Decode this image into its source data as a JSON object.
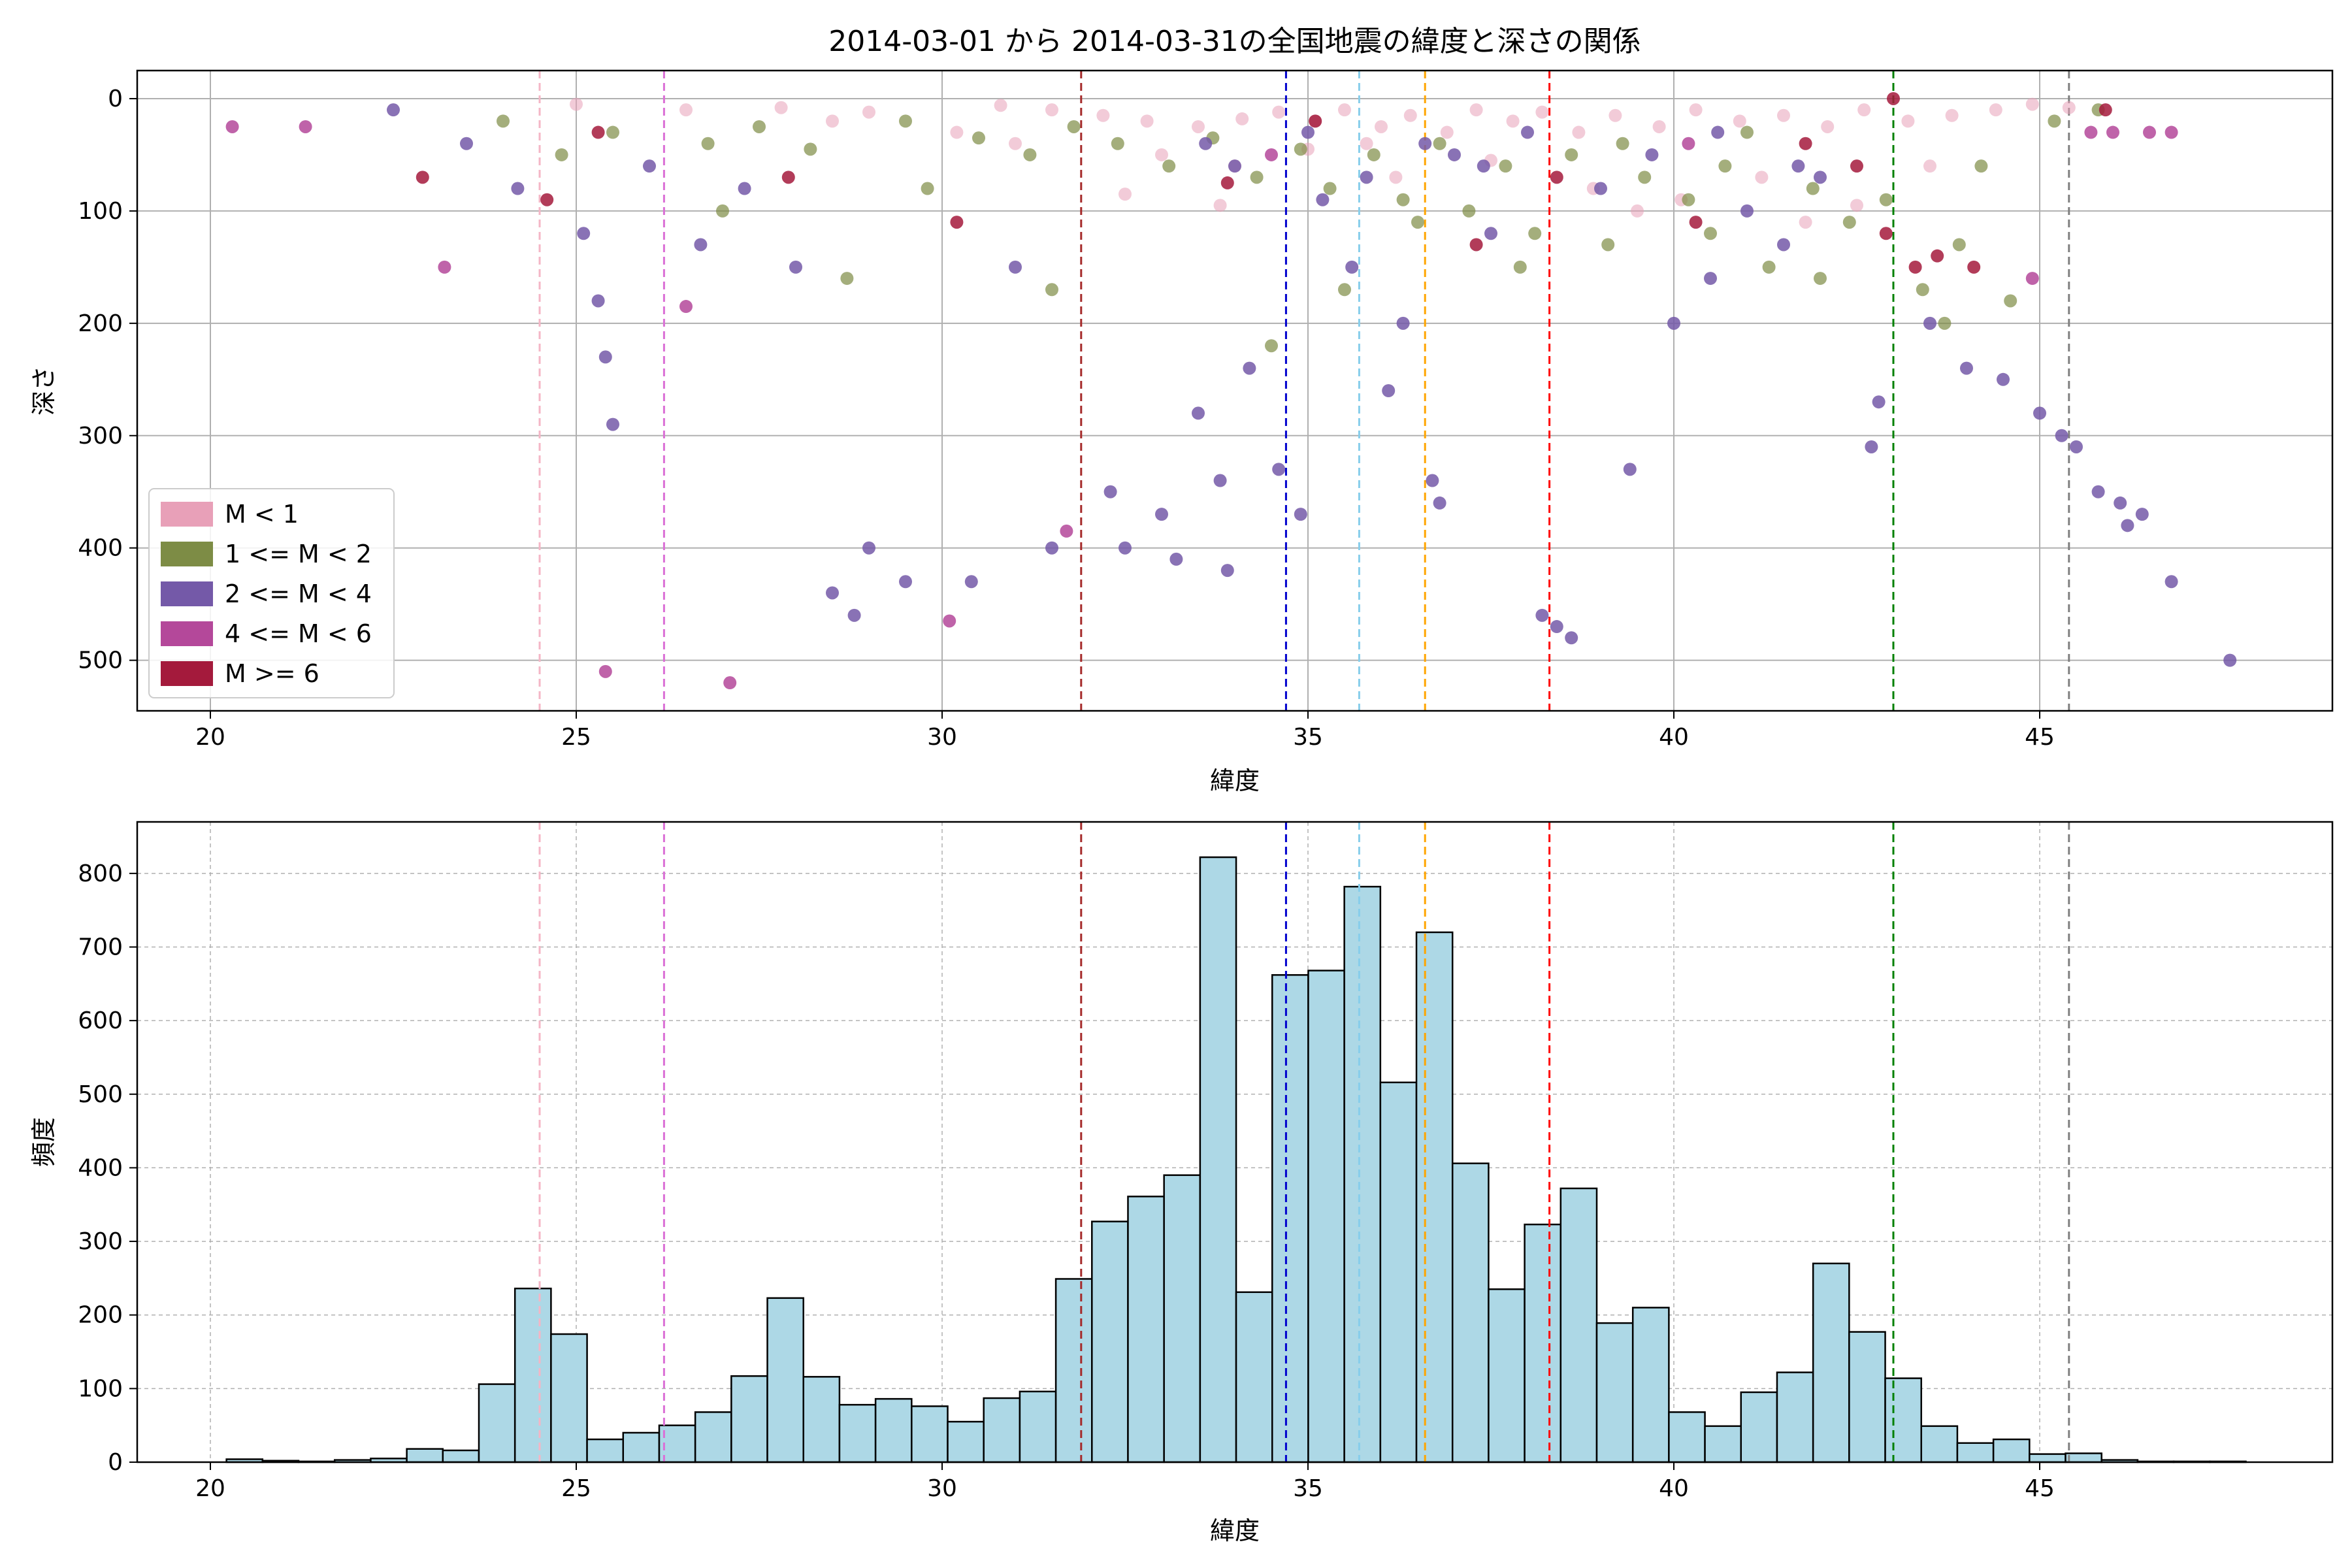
{
  "title": "2014-03-01 から 2014-03-31の全国地震の緯度と深さの関係",
  "colors": {
    "m_lt1": "#e8a0b8",
    "m_1_2": "#7d8c45",
    "m_2_4": "#7459a8",
    "m_4_6": "#b4489a",
    "m_ge6": "#a41a3c",
    "hist_fill": "#add8e6",
    "grid": "#b0b0b0"
  },
  "chart_data": [
    {
      "type": "scatter",
      "xlabel": "緯度",
      "ylabel": "深さ",
      "xlim": [
        19,
        49
      ],
      "ylim": [
        545,
        -25
      ],
      "y_inverted": true,
      "xticks": [
        20,
        25,
        30,
        35,
        40,
        45
      ],
      "yticks": [
        0,
        100,
        200,
        300,
        400,
        500
      ],
      "grid": true,
      "legend_placement": "lower-left",
      "legend": [
        "M < 1",
        "1 <= M < 2",
        "2 <= M < 4",
        "4 <= M < 6",
        "M >= 6"
      ],
      "vlines": [
        {
          "x": 24.5,
          "color": "#f4b6c6"
        },
        {
          "x": 26.2,
          "color": "#da70d6"
        },
        {
          "x": 31.9,
          "color": "#a52a2a"
        },
        {
          "x": 34.7,
          "color": "#0000cd"
        },
        {
          "x": 35.7,
          "color": "#87ceeb"
        },
        {
          "x": 36.6,
          "color": "#ffa500"
        },
        {
          "x": 38.3,
          "color": "#ff0000"
        },
        {
          "x": 43.0,
          "color": "#008000"
        },
        {
          "x": 45.4,
          "color": "#808080"
        }
      ],
      "series": [
        {
          "name": "M < 1",
          "points": [
            [
              25.0,
              5
            ],
            [
              26.5,
              10
            ],
            [
              27.8,
              8
            ],
            [
              29.0,
              12
            ],
            [
              30.8,
              6
            ],
            [
              31.5,
              10
            ],
            [
              32.2,
              15
            ],
            [
              32.8,
              20
            ],
            [
              33.5,
              25
            ],
            [
              34.1,
              18
            ],
            [
              34.6,
              12
            ],
            [
              35.1,
              20
            ],
            [
              35.5,
              10
            ],
            [
              36.0,
              25
            ],
            [
              36.4,
              15
            ],
            [
              36.9,
              30
            ],
            [
              37.3,
              10
            ],
            [
              37.8,
              20
            ],
            [
              38.2,
              12
            ],
            [
              38.7,
              30
            ],
            [
              39.2,
              15
            ],
            [
              39.8,
              25
            ],
            [
              40.3,
              10
            ],
            [
              40.9,
              20
            ],
            [
              41.5,
              15
            ],
            [
              42.1,
              25
            ],
            [
              42.6,
              10
            ],
            [
              43.2,
              20
            ],
            [
              43.8,
              15
            ],
            [
              44.4,
              10
            ],
            [
              44.9,
              5
            ],
            [
              45.4,
              8
            ],
            [
              33.0,
              50
            ],
            [
              34.0,
              60
            ],
            [
              35.0,
              45
            ],
            [
              36.2,
              70
            ],
            [
              37.5,
              55
            ],
            [
              38.9,
              80
            ],
            [
              40.1,
              90
            ],
            [
              41.2,
              70
            ],
            [
              42.5,
              95
            ],
            [
              43.5,
              60
            ],
            [
              32.5,
              85
            ],
            [
              31.0,
              40
            ],
            [
              30.2,
              30
            ],
            [
              28.5,
              20
            ],
            [
              33.8,
              95
            ],
            [
              39.5,
              100
            ],
            [
              41.8,
              110
            ],
            [
              35.8,
              40
            ]
          ]
        },
        {
          "name": "1 <= M < 2",
          "points": [
            [
              24.0,
              20
            ],
            [
              24.8,
              50
            ],
            [
              25.5,
              30
            ],
            [
              26.8,
              40
            ],
            [
              27.5,
              25
            ],
            [
              28.2,
              45
            ],
            [
              29.5,
              20
            ],
            [
              30.5,
              35
            ],
            [
              31.2,
              50
            ],
            [
              31.8,
              25
            ],
            [
              32.4,
              40
            ],
            [
              33.1,
              60
            ],
            [
              33.7,
              35
            ],
            [
              34.3,
              70
            ],
            [
              34.9,
              45
            ],
            [
              35.3,
              80
            ],
            [
              35.9,
              50
            ],
            [
              36.3,
              90
            ],
            [
              36.8,
              40
            ],
            [
              37.2,
              100
            ],
            [
              37.7,
              60
            ],
            [
              38.1,
              120
            ],
            [
              38.6,
              50
            ],
            [
              39.1,
              130
            ],
            [
              39.6,
              70
            ],
            [
              40.2,
              90
            ],
            [
              40.7,
              60
            ],
            [
              41.3,
              150
            ],
            [
              41.9,
              80
            ],
            [
              42.4,
              110
            ],
            [
              42.9,
              90
            ],
            [
              43.4,
              170
            ],
            [
              43.9,
              130
            ],
            [
              44.6,
              180
            ],
            [
              45.2,
              20
            ],
            [
              45.8,
              10
            ],
            [
              27.0,
              100
            ],
            [
              28.7,
              160
            ],
            [
              29.8,
              80
            ],
            [
              31.5,
              170
            ],
            [
              34.5,
              220
            ],
            [
              36.5,
              110
            ],
            [
              37.9,
              150
            ],
            [
              39.3,
              40
            ],
            [
              40.5,
              120
            ],
            [
              41.0,
              30
            ],
            [
              42.0,
              160
            ],
            [
              43.7,
              200
            ],
            [
              44.2,
              60
            ],
            [
              35.5,
              170
            ]
          ]
        },
        {
          "name": "2 <= M < 4",
          "points": [
            [
              22.5,
              10
            ],
            [
              23.5,
              40
            ],
            [
              24.2,
              80
            ],
            [
              25.1,
              120
            ],
            [
              25.3,
              180
            ],
            [
              25.4,
              230
            ],
            [
              25.5,
              290
            ],
            [
              26.0,
              60
            ],
            [
              26.7,
              130
            ],
            [
              27.3,
              80
            ],
            [
              28.0,
              150
            ],
            [
              28.5,
              440
            ],
            [
              28.8,
              460
            ],
            [
              29.0,
              400
            ],
            [
              29.5,
              430
            ],
            [
              30.4,
              430
            ],
            [
              31.0,
              150
            ],
            [
              31.5,
              400
            ],
            [
              32.3,
              350
            ],
            [
              32.5,
              400
            ],
            [
              33.0,
              370
            ],
            [
              33.2,
              410
            ],
            [
              33.5,
              280
            ],
            [
              33.8,
              340
            ],
            [
              33.9,
              420
            ],
            [
              34.2,
              240
            ],
            [
              34.6,
              330
            ],
            [
              34.9,
              370
            ],
            [
              35.2,
              90
            ],
            [
              35.6,
              150
            ],
            [
              36.1,
              260
            ],
            [
              36.3,
              200
            ],
            [
              36.7,
              340
            ],
            [
              36.8,
              360
            ],
            [
              37.0,
              50
            ],
            [
              37.5,
              120
            ],
            [
              38.2,
              460
            ],
            [
              38.4,
              470
            ],
            [
              38.6,
              480
            ],
            [
              39.0,
              80
            ],
            [
              39.4,
              330
            ],
            [
              40.0,
              200
            ],
            [
              40.5,
              160
            ],
            [
              41.0,
              100
            ],
            [
              41.5,
              130
            ],
            [
              42.0,
              70
            ],
            [
              42.7,
              310
            ],
            [
              42.8,
              270
            ],
            [
              43.5,
              200
            ],
            [
              44.0,
              240
            ],
            [
              44.5,
              250
            ],
            [
              45.0,
              280
            ],
            [
              45.3,
              300
            ],
            [
              45.5,
              310
            ],
            [
              45.8,
              350
            ],
            [
              46.1,
              360
            ],
            [
              46.2,
              380
            ],
            [
              46.4,
              370
            ],
            [
              46.8,
              430
            ],
            [
              47.6,
              500
            ],
            [
              33.6,
              40
            ],
            [
              34.0,
              60
            ],
            [
              35.0,
              30
            ],
            [
              35.8,
              70
            ],
            [
              36.6,
              40
            ],
            [
              37.4,
              60
            ],
            [
              38.0,
              30
            ],
            [
              39.7,
              50
            ],
            [
              40.6,
              30
            ],
            [
              41.7,
              60
            ]
          ]
        },
        {
          "name": "4 <= M < 6",
          "points": [
            [
              20.3,
              25
            ],
            [
              21.3,
              25
            ],
            [
              23.2,
              150
            ],
            [
              25.4,
              510
            ],
            [
              26.5,
              185
            ],
            [
              27.1,
              520
            ],
            [
              30.1,
              465
            ],
            [
              31.7,
              385
            ],
            [
              45.7,
              30
            ],
            [
              46.0,
              30
            ],
            [
              46.5,
              30
            ],
            [
              46.8,
              30
            ],
            [
              44.9,
              160
            ],
            [
              40.2,
              40
            ],
            [
              34.5,
              50
            ]
          ]
        },
        {
          "name": "M >= 6",
          "points": [
            [
              22.9,
              70
            ],
            [
              24.6,
              90
            ],
            [
              25.3,
              30
            ],
            [
              27.9,
              70
            ],
            [
              30.2,
              110
            ],
            [
              33.9,
              75
            ],
            [
              35.1,
              20
            ],
            [
              37.3,
              130
            ],
            [
              38.4,
              70
            ],
            [
              40.3,
              110
            ],
            [
              41.8,
              40
            ],
            [
              42.5,
              60
            ],
            [
              42.9,
              120
            ],
            [
              43.3,
              150
            ],
            [
              43.6,
              140
            ],
            [
              44.1,
              150
            ],
            [
              45.9,
              10
            ],
            [
              43.0,
              0
            ]
          ]
        }
      ]
    },
    {
      "type": "bar",
      "xlabel": "緯度",
      "ylabel": "頻度",
      "xlim": [
        19,
        49
      ],
      "ylim": [
        0,
        870
      ],
      "xticks": [
        20,
        25,
        30,
        35,
        40,
        45
      ],
      "yticks": [
        0,
        100,
        200,
        300,
        400,
        500,
        600,
        700,
        800
      ],
      "grid": true,
      "bin_start": 20.22,
      "bin_width": 0.4928,
      "values": [
        4,
        2,
        1,
        3,
        5,
        18,
        16,
        106,
        236,
        174,
        31,
        40,
        50,
        68,
        117,
        223,
        116,
        78,
        86,
        76,
        55,
        87,
        96,
        249,
        327,
        361,
        390,
        822,
        231,
        662,
        668,
        782,
        516,
        720,
        406,
        235,
        323,
        372,
        189,
        210,
        68,
        49,
        95,
        122,
        270,
        177,
        114,
        49,
        26,
        31,
        11,
        12,
        3,
        1,
        1,
        1
      ],
      "vlines": [
        {
          "x": 24.5,
          "color": "#f4b6c6"
        },
        {
          "x": 26.2,
          "color": "#da70d6"
        },
        {
          "x": 31.9,
          "color": "#a52a2a"
        },
        {
          "x": 34.7,
          "color": "#0000cd"
        },
        {
          "x": 35.7,
          "color": "#87ceeb"
        },
        {
          "x": 36.6,
          "color": "#ffa500"
        },
        {
          "x": 38.3,
          "color": "#ff0000"
        },
        {
          "x": 43.0,
          "color": "#008000"
        },
        {
          "x": 45.4,
          "color": "#808080"
        }
      ]
    }
  ]
}
